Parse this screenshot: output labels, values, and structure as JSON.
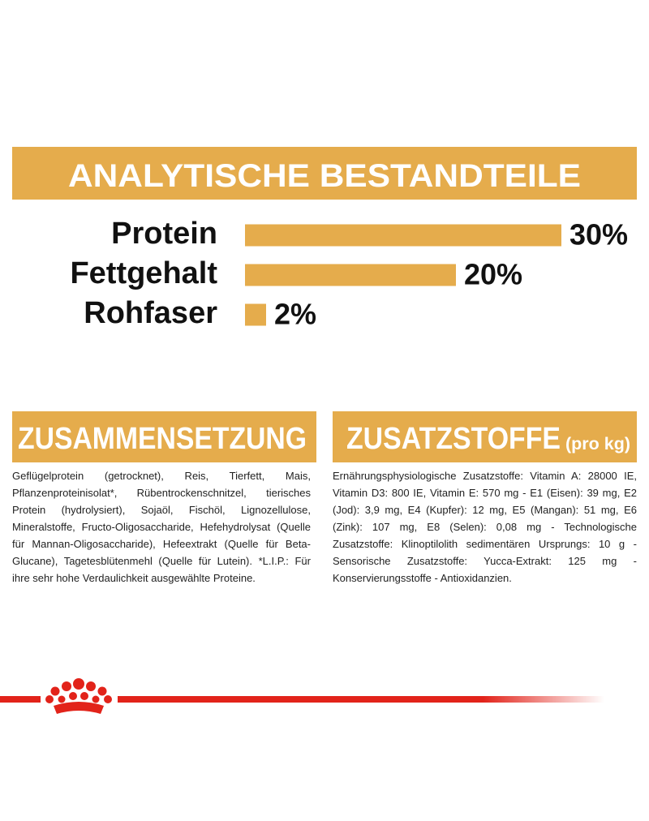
{
  "chart_data": {
    "type": "bar",
    "orientation": "horizontal",
    "title": "ANALYTISCHE BESTANDTEILE",
    "categories": [
      "Protein",
      "Fettgehalt",
      "Rohfaser"
    ],
    "values": [
      30,
      20,
      2
    ],
    "value_labels": [
      "30%",
      "20%",
      "2%"
    ],
    "color": "#e5ac4c"
  },
  "composition": {
    "title": "ZUSAMMENSETZUNG",
    "text": "Geflügelprotein (getrocknet), Reis, Tierfett, Mais, Pflanzenproteinisolat*, Rübentrockenschnitzel, tierisches Protein (hydrolysiert), Sojaöl, Fischöl, Lignozellulose, Mineralstoffe, Fructo-Oligosaccharide, Hefehydrolysat (Quelle für Mannan-Oligosaccharide), Hefeextrakt (Quelle für Beta-Glucane), Tagetesblütenmehl (Quelle für Lutein). *L.I.P.: Für ihre sehr hohe Verdaulichkeit ausgewählte Proteine."
  },
  "additives": {
    "title": "ZUSATZSTOFFE",
    "unit": "(pro kg)",
    "text": "Ernährungsphysiologische Zusatzstoffe: Vitamin A: 28000 IE, Vitamin D3: 800 IE, Vitamin E: 570 mg - E1 (Eisen): 39 mg, E2 (Jod): 3,9 mg, E4 (Kupfer): 12 mg, E5 (Mangan): 51 mg, E6 (Zink): 107 mg, E8 (Selen): 0,08 mg - Technologische Zusatzstoffe: Klinoptilolith sedimentären Ursprungs: 10 g - Sensorische Zusatzstoffe: Yucca-Extrakt: 125 mg - Konservierungsstoffe - Antioxidanzien."
  }
}
